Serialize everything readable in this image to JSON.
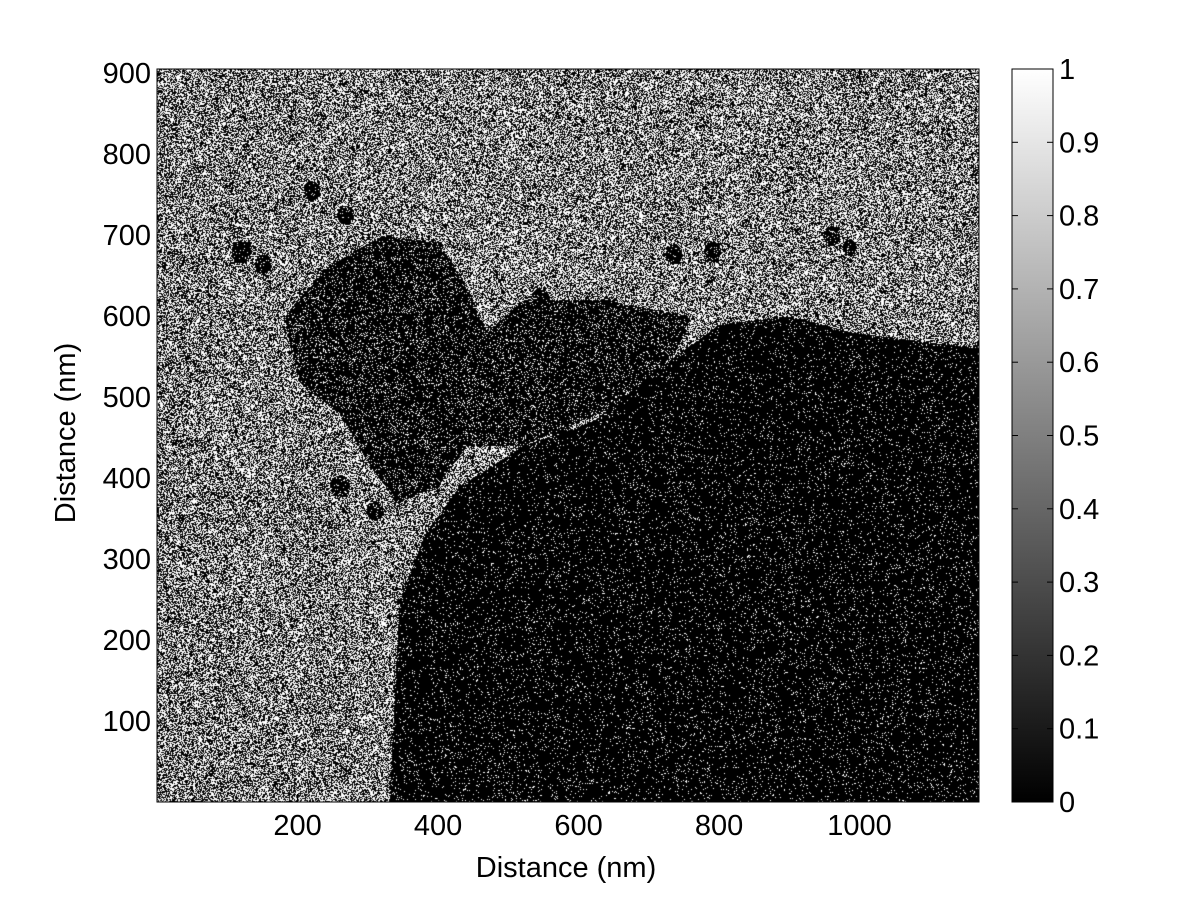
{
  "chart_data": {
    "type": "heatmap",
    "colormap": "gray",
    "xlabel": "Distance (nm)",
    "ylabel": "Distance (nm)",
    "xlim": [
      0,
      1170
    ],
    "ylim": [
      0,
      905
    ],
    "xticks": [
      200,
      400,
      600,
      800,
      1000
    ],
    "yticks": [
      100,
      200,
      300,
      400,
      500,
      600,
      700,
      800,
      900
    ],
    "colorbar": {
      "range": [
        0,
        1
      ],
      "ticks": [
        "0",
        "0.1",
        "0.2",
        "0.3",
        "0.4",
        "0.5",
        "0.6",
        "0.7",
        "0.8",
        "0.9",
        "1"
      ]
    },
    "pixel_values": "binary speckle (0 or 1), density varies by region",
    "regions": [
      {
        "name": "upper background",
        "white_fraction": 0.5
      },
      {
        "name": "left band",
        "white_fraction": 0.48
      },
      {
        "name": "dark central particle",
        "white_fraction": 0.12
      },
      {
        "name": "large dark lower-right particle",
        "white_fraction": 0.06
      }
    ]
  }
}
